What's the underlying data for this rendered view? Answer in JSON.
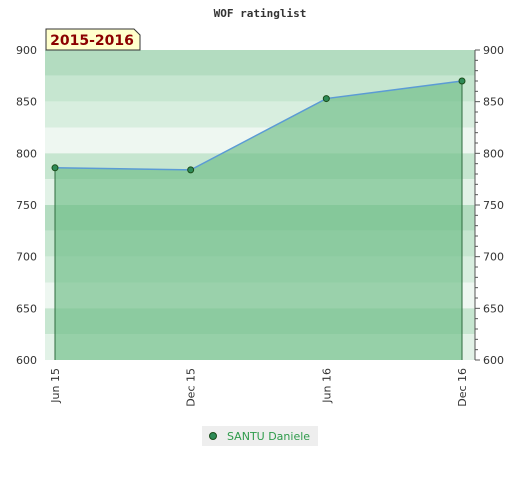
{
  "chart_data": {
    "type": "area",
    "title": "WOF ratinglist",
    "period_label": "2015-2016",
    "categories": [
      "Jun 15",
      "Dec 15",
      "Jun 16",
      "Dec 16"
    ],
    "series": [
      {
        "name": "SANTU Daniele",
        "values": [
          786,
          784,
          853,
          870
        ]
      }
    ],
    "ylim": [
      600,
      900
    ],
    "y_ticks": [
      600,
      650,
      700,
      750,
      800,
      850,
      900
    ],
    "y_tick_labels": [
      "600",
      "650",
      "700",
      "750",
      "800",
      "850",
      "900"
    ],
    "grid": false,
    "legend_position": "bottom-center",
    "colors": {
      "line": "#5b9bd5",
      "fill": "#6dbd85",
      "marker": "#2e8b57",
      "badge_bg": "#ffffcc"
    }
  }
}
